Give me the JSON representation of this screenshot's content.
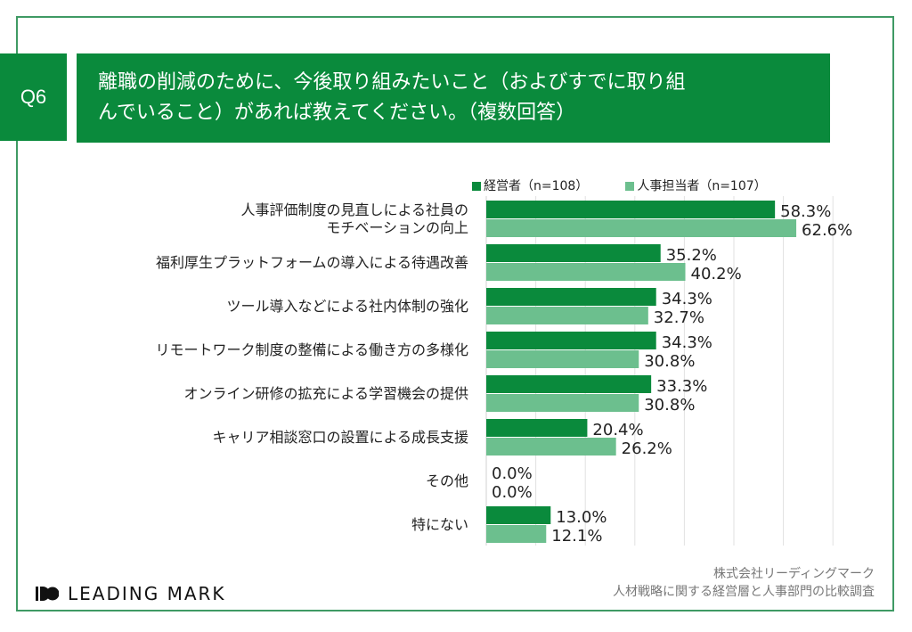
{
  "question_label": "Q6",
  "title_lines": [
    "離職の削減のために、今後取り組みたいこと（およびすでに取り組",
    "んでいること）があれば教えてください。（複数回答）"
  ],
  "colors": {
    "primary": "#0a8a3c",
    "secondary": "#6cbf8e",
    "frame": "#3f9a64"
  },
  "chart_data": {
    "type": "bar",
    "orientation": "horizontal",
    "categories": [
      "人事評価制度の見直しによる社員のモチベーションの向上",
      "福利厚生プラットフォームの導入による待遇改善",
      "ツール導入などによる社内体制の強化",
      "リモートワーク制度の整備による働き方の多様化",
      "オンライン研修の拡充による学習機会の提供",
      "キャリア相談窓口の設置による成長支援",
      "その他",
      "特にない"
    ],
    "category_lines": [
      [
        "人事評価制度の見直しによる社員の",
        "モチベーションの向上"
      ],
      [
        "福利厚生プラットフォームの導入による待遇改善"
      ],
      [
        "ツール導入などによる社内体制の強化"
      ],
      [
        "リモートワーク制度の整備による働き方の多様化"
      ],
      [
        "オンライン研修の拡充による学習機会の提供"
      ],
      [
        "キャリア相談窓口の設置による成長支援"
      ],
      [
        "その他"
      ],
      [
        "特にない"
      ]
    ],
    "series": [
      {
        "name": "経営者（n=108）",
        "values": [
          58.3,
          35.2,
          34.3,
          34.3,
          33.3,
          20.4,
          0.0,
          13.0
        ],
        "color": "#0a8a3c"
      },
      {
        "name": "人事担当者（n=107）",
        "values": [
          62.6,
          40.2,
          32.7,
          30.8,
          30.8,
          26.2,
          0.0,
          12.1
        ],
        "color": "#6cbf8e"
      }
    ],
    "value_format": "percent_1dp",
    "xlim": [
      0,
      70
    ],
    "grid": true,
    "legend": "top-right"
  },
  "footer": {
    "logo": "LEADING MARK",
    "company": "株式会社リーディングマーク",
    "survey": "人材戦略に関する経営層と人事部門の比較調査"
  }
}
